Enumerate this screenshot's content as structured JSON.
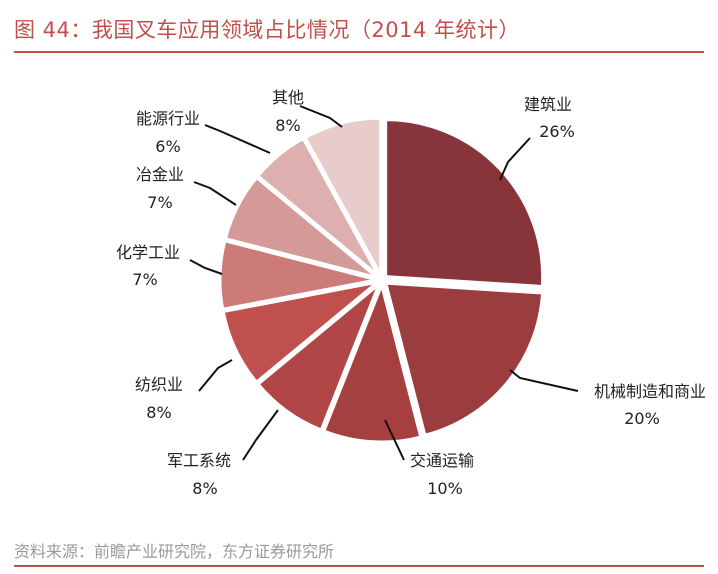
{
  "title": "图 44：我国叉车应用领域占比情况（2014 年统计）",
  "source": "资料来源：前瞻产业研究院，东方证券研究所",
  "colors": {
    "accent": "#C0504D"
  },
  "chart_data": {
    "type": "pie",
    "unit": "%",
    "legend": "none",
    "slices": [
      {
        "name": "建筑业",
        "value": 26,
        "label": "26%",
        "color": "#87353A"
      },
      {
        "name": "机械制造和商业",
        "value": 20,
        "label": "20%",
        "color": "#9B3C3E"
      },
      {
        "name": "交通运输",
        "value": 10,
        "label": "10%",
        "color": "#A63F40"
      },
      {
        "name": "军工系统",
        "value": 8,
        "label": "8%",
        "color": "#B04746"
      },
      {
        "name": "纺织业",
        "value": 8,
        "label": "8%",
        "color": "#C0504D"
      },
      {
        "name": "化学工业",
        "value": 7,
        "label": "7%",
        "color": "#CC7B78"
      },
      {
        "name": "冶金业",
        "value": 7,
        "label": "7%",
        "color": "#D49A98"
      },
      {
        "name": "能源行业",
        "value": 6,
        "label": "6%",
        "color": "#DDB0AF"
      },
      {
        "name": "其他",
        "value": 8,
        "label": "8%",
        "color": "#E8CCCC"
      }
    ]
  }
}
